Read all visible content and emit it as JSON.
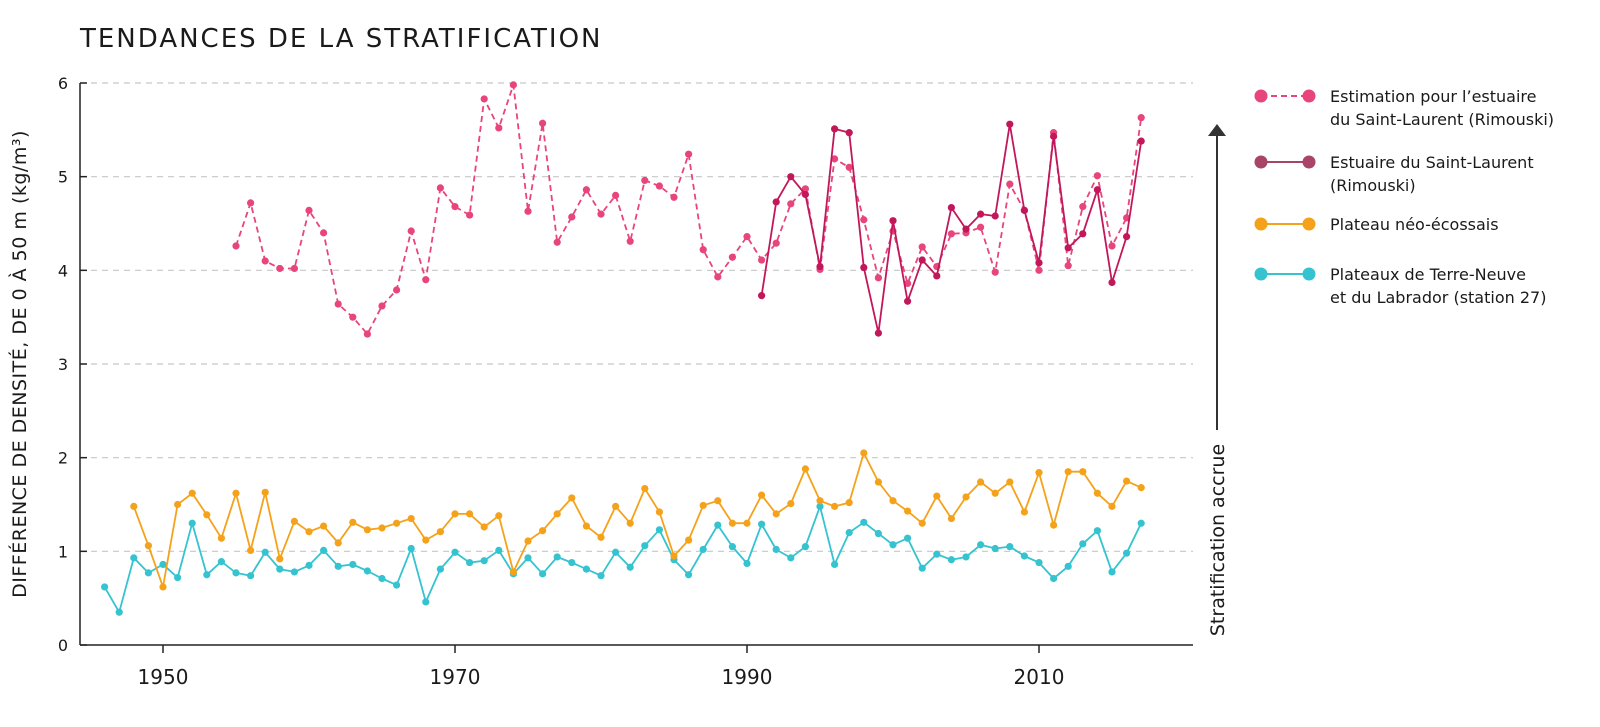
{
  "chart_data": {
    "type": "line",
    "title": "TENDANCES DE LA STRATIFICATION",
    "ylabel": "DIFFÉRENCE DE DENSITÉ, DE 0 À 50 m (kg/m³)",
    "xlabel": "",
    "xlim": [
      1944,
      2021
    ],
    "ylim": [
      0,
      6
    ],
    "x_ticks": [
      1950,
      1970,
      1990,
      2010
    ],
    "y_ticks": [
      0,
      1,
      2,
      3,
      4,
      5,
      6
    ],
    "grid": "horizontal dashed",
    "legend_position": "right",
    "annotation": "Stratification accrue",
    "series": [
      {
        "name": "Estimation pour l’estuaire du Saint-Laurent (Rimouski)",
        "legend_lines": [
          "Estimation pour l’estuaire",
          "du Saint-Laurent (Rimouski)"
        ],
        "color": "#e8457a",
        "style": "dashed",
        "x": [
          1955,
          1956,
          1957,
          1958,
          1959,
          1960,
          1961,
          1962,
          1963,
          1964,
          1965,
          1966,
          1967,
          1968,
          1969,
          1970,
          1971,
          1972,
          1973,
          1974,
          1975,
          1976,
          1977,
          1978,
          1979,
          1980,
          1981,
          1982,
          1983,
          1984,
          1985,
          1986,
          1987,
          1988,
          1989,
          1990,
          1991,
          1992,
          1993,
          1994,
          1995,
          1996,
          1997,
          1998,
          1999,
          2000,
          2001,
          2002,
          2003,
          2004,
          2005,
          2006,
          2007,
          2008,
          2009,
          2010,
          2011,
          2012,
          2013,
          2014,
          2015,
          2016,
          2017
        ],
        "y": [
          4.26,
          4.72,
          4.1,
          4.02,
          4.02,
          4.64,
          4.4,
          3.64,
          3.5,
          3.32,
          3.62,
          3.79,
          4.42,
          3.9,
          4.88,
          4.68,
          4.59,
          5.83,
          5.52,
          5.98,
          4.63,
          5.57,
          4.3,
          4.57,
          4.86,
          4.6,
          4.8,
          4.31,
          4.96,
          4.9,
          4.78,
          5.24,
          4.22,
          3.93,
          4.14,
          4.36,
          4.11,
          4.29,
          4.71,
          4.87,
          4.01,
          5.19,
          5.1,
          4.54,
          3.92,
          4.42,
          3.86,
          4.25,
          4.04,
          4.39,
          4.4,
          4.46,
          3.98,
          4.92,
          4.64,
          4.0,
          5.47,
          4.05,
          4.68,
          5.01,
          4.26,
          4.56,
          5.63
        ]
      },
      {
        "name": "Estuaire du Saint-Laurent (Rimouski)",
        "legend_lines": [
          "Estuaire du Saint-Laurent",
          "(Rimouski)"
        ],
        "color": "#c2185b",
        "legend_color": "#a84468",
        "style": "solid",
        "x": [
          1991,
          1992,
          1993,
          1994,
          1995,
          1996,
          1997,
          1998,
          1999,
          2000,
          2001,
          2002,
          2003,
          2004,
          2005,
          2006,
          2007,
          2008,
          2009,
          2010,
          2011,
          2012,
          2013,
          2014,
          2015,
          2016,
          2017
        ],
        "y": [
          3.73,
          4.73,
          5.0,
          4.81,
          4.04,
          5.51,
          5.47,
          4.03,
          3.33,
          4.53,
          3.67,
          4.11,
          3.94,
          4.67,
          4.44,
          4.6,
          4.58,
          5.56,
          4.64,
          4.08,
          5.43,
          4.24,
          4.39,
          4.86,
          3.87,
          4.36,
          5.38
        ]
      },
      {
        "name": "Plateau néo-écossais",
        "legend_lines": [
          "Plateau néo-écossais"
        ],
        "color": "#f5a21b",
        "style": "solid",
        "x": [
          1948,
          1949,
          1950,
          1951,
          1952,
          1953,
          1954,
          1955,
          1956,
          1957,
          1958,
          1959,
          1960,
          1961,
          1962,
          1963,
          1964,
          1965,
          1966,
          1967,
          1968,
          1969,
          1970,
          1971,
          1972,
          1973,
          1974,
          1975,
          1976,
          1977,
          1978,
          1979,
          1980,
          1981,
          1982,
          1983,
          1984,
          1985,
          1986,
          1987,
          1988,
          1989,
          1990,
          1991,
          1992,
          1993,
          1994,
          1995,
          1996,
          1997,
          1998,
          1999,
          2000,
          2001,
          2002,
          2003,
          2004,
          2005,
          2006,
          2007,
          2008,
          2009,
          2010,
          2011,
          2012,
          2013,
          2014,
          2015,
          2016,
          2017
        ],
        "y": [
          1.48,
          1.06,
          0.62,
          1.5,
          1.62,
          1.39,
          1.14,
          1.62,
          1.01,
          1.63,
          0.92,
          1.32,
          1.21,
          1.27,
          1.09,
          1.31,
          1.23,
          1.25,
          1.3,
          1.35,
          1.12,
          1.21,
          1.4,
          1.4,
          1.26,
          1.38,
          0.78,
          1.11,
          1.22,
          1.4,
          1.57,
          1.27,
          1.15,
          1.48,
          1.3,
          1.67,
          1.42,
          0.95,
          1.12,
          1.49,
          1.54,
          1.3,
          1.3,
          1.6,
          1.4,
          1.51,
          1.88,
          1.54,
          1.48,
          1.52,
          2.05,
          1.74,
          1.54,
          1.43,
          1.3,
          1.59,
          1.35,
          1.58,
          1.74,
          1.62,
          1.74,
          1.42,
          1.84,
          1.28,
          1.85,
          1.85,
          1.62,
          1.48,
          1.75,
          1.68
        ]
      },
      {
        "name": "Plateaux de Terre-Neuve et du Labrador (station 27)",
        "legend_lines": [
          "Plateaux de Terre-Neuve",
          "et du Labrador (station 27)"
        ],
        "color": "#35c3d0",
        "style": "solid",
        "x": [
          1946,
          1947,
          1948,
          1949,
          1950,
          1951,
          1952,
          1953,
          1954,
          1955,
          1956,
          1957,
          1958,
          1959,
          1960,
          1961,
          1962,
          1963,
          1964,
          1965,
          1966,
          1967,
          1968,
          1969,
          1970,
          1971,
          1972,
          1973,
          1974,
          1975,
          1976,
          1977,
          1978,
          1979,
          1980,
          1981,
          1982,
          1983,
          1984,
          1985,
          1986,
          1987,
          1988,
          1989,
          1990,
          1991,
          1992,
          1993,
          1994,
          1995,
          1996,
          1997,
          1998,
          1999,
          2000,
          2001,
          2002,
          2003,
          2004,
          2005,
          2006,
          2007,
          2008,
          2009,
          2010,
          2011,
          2012,
          2013,
          2014,
          2015,
          2016,
          2017
        ],
        "y": [
          0.62,
          0.35,
          0.93,
          0.77,
          0.86,
          0.72,
          1.3,
          0.75,
          0.89,
          0.77,
          0.74,
          0.99,
          0.81,
          0.78,
          0.85,
          1.01,
          0.84,
          0.86,
          0.79,
          0.71,
          0.64,
          1.03,
          0.46,
          0.81,
          0.99,
          0.88,
          0.9,
          1.01,
          0.76,
          0.93,
          0.76,
          0.94,
          0.88,
          0.81,
          0.74,
          0.99,
          0.83,
          1.06,
          1.23,
          0.91,
          0.75,
          1.02,
          1.28,
          1.05,
          0.87,
          1.29,
          1.02,
          0.93,
          1.05,
          1.48,
          0.86,
          1.2,
          1.31,
          1.19,
          1.07,
          1.14,
          0.82,
          0.97,
          0.91,
          0.94,
          1.07,
          1.03,
          1.05,
          0.95,
          0.88,
          0.71,
          0.84,
          1.08,
          1.22,
          0.78,
          0.98,
          1.3
        ]
      }
    ]
  }
}
